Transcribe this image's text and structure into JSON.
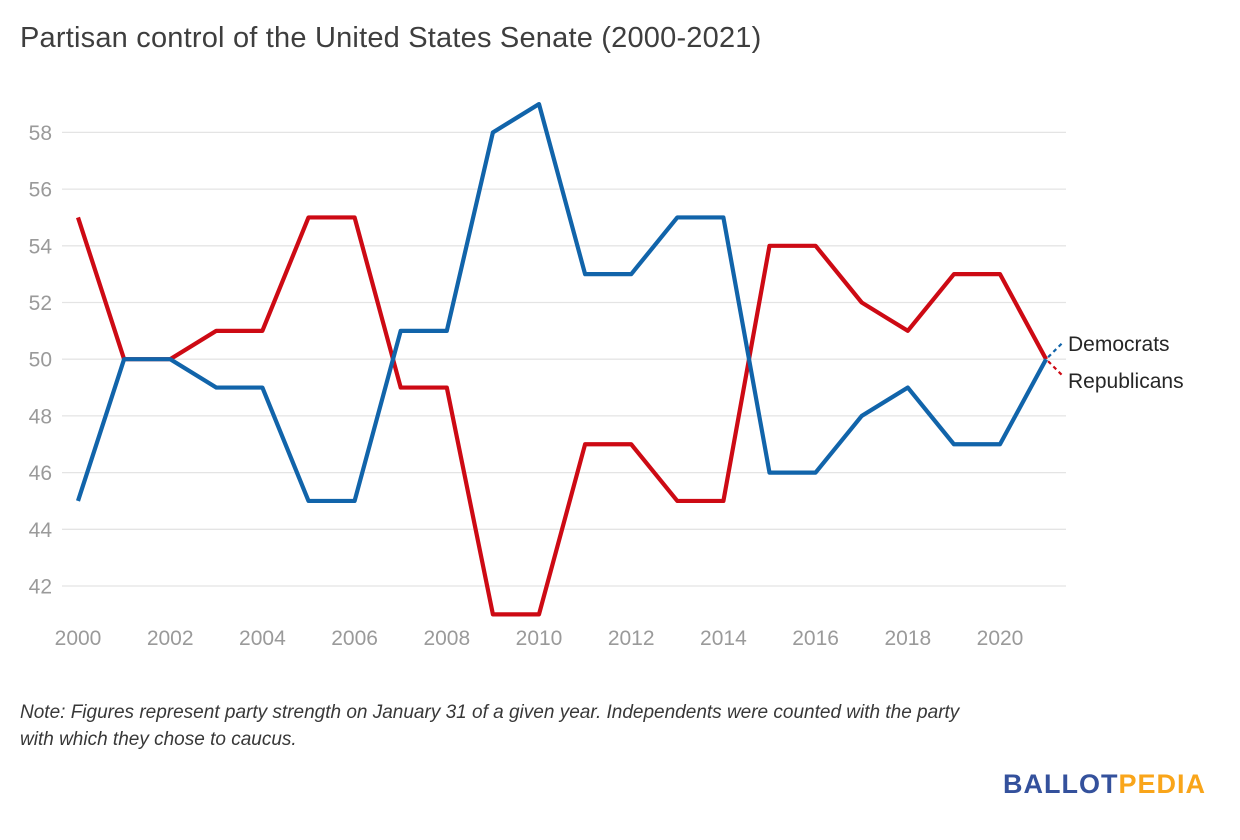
{
  "title": "Partisan control of the United States Senate (2000-2021)",
  "note": "Note: Figures represent party strength on January 31 of a given year. Independents were counted with the party with which they chose to caucus.",
  "logo": {
    "part1": "BALLOT",
    "part2": "PEDIA"
  },
  "colors": {
    "democrat": "#1164aa",
    "republican": "#cd0a14",
    "grid": "#e4e4e4",
    "axis_text": "#9a9a9a",
    "label_text": "#262626",
    "title_text": "#3e3e3e",
    "logo_blue": "#34519c",
    "logo_orange": "#f9a51a"
  },
  "chart_data": {
    "type": "line",
    "title": "Partisan control of the United States Senate (2000-2021)",
    "x": [
      2000,
      2001,
      2002,
      2003,
      2004,
      2005,
      2006,
      2007,
      2008,
      2009,
      2010,
      2011,
      2012,
      2013,
      2014,
      2015,
      2016,
      2017,
      2018,
      2019,
      2020,
      2021
    ],
    "series": [
      {
        "name": "Democrats",
        "color": "#1164aa",
        "values": [
          45,
          50,
          50,
          49,
          49,
          45,
          45,
          51,
          51,
          58,
          59,
          53,
          53,
          55,
          55,
          46,
          46,
          48,
          49,
          47,
          47,
          50
        ]
      },
      {
        "name": "Republicans",
        "color": "#cd0a14",
        "values": [
          55,
          50,
          50,
          51,
          51,
          55,
          55,
          49,
          49,
          41,
          41,
          47,
          47,
          45,
          45,
          54,
          54,
          52,
          51,
          53,
          53,
          50
        ]
      }
    ],
    "xlabel": "",
    "ylabel": "",
    "ylim": [
      40.5,
      59.5
    ],
    "xlim": [
      2000,
      2021
    ],
    "yticks": [
      42,
      44,
      46,
      48,
      50,
      52,
      54,
      56,
      58
    ],
    "xticks": [
      2000,
      2002,
      2004,
      2006,
      2008,
      2010,
      2012,
      2014,
      2016,
      2018,
      2020
    ],
    "grid": true,
    "legend_position": "right-end-labels",
    "end_labels": [
      "Democrats",
      "Republicans"
    ]
  }
}
